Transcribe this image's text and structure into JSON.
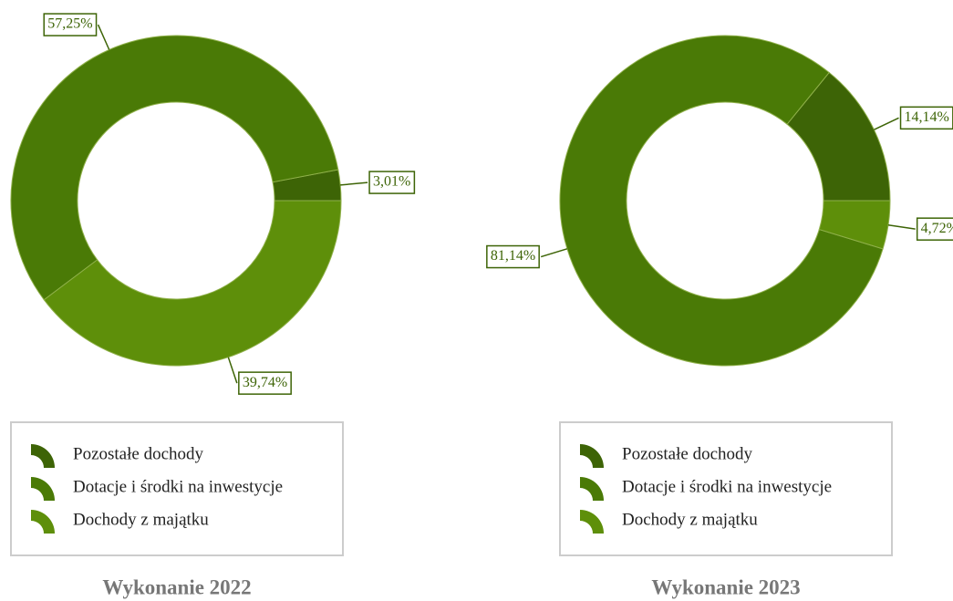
{
  "chart_data": [
    {
      "type": "pie",
      "title": "Wykonanie 2022",
      "categories": [
        "Pozostałe dochody",
        "Dotacje i środki na inwestycje",
        "Dochody z majątku"
      ],
      "values": [
        3.01,
        57.25,
        39.74
      ],
      "value_labels": [
        "3,01%",
        "57,25%",
        "39,74%"
      ],
      "colors": [
        "#3d6406",
        "#4a7a06",
        "#5e8f0a"
      ]
    },
    {
      "type": "pie",
      "title": "Wykonanie 2023",
      "categories": [
        "Pozostałe dochody",
        "Dotacje i środki na inwestycje",
        "Dochody z majątku"
      ],
      "values": [
        14.14,
        81.14,
        4.72
      ],
      "value_labels": [
        "14,14%",
        "81,14%",
        "4,72%"
      ],
      "colors": [
        "#3d6406",
        "#4a7a06",
        "#5e8f0a"
      ]
    }
  ]
}
